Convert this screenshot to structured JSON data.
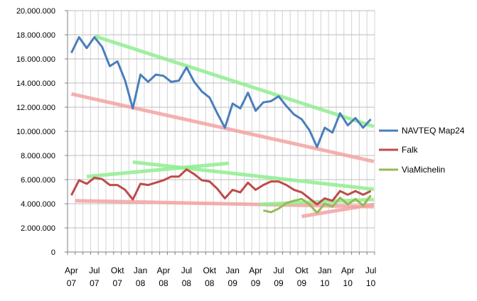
{
  "chart_data": {
    "type": "line",
    "title": "",
    "xlabel": "",
    "ylabel": "",
    "ylim": [
      0,
      20000000
    ],
    "y_ticks": [
      0,
      2000000,
      4000000,
      6000000,
      8000000,
      10000000,
      12000000,
      14000000,
      16000000,
      18000000,
      20000000
    ],
    "y_tick_labels": [
      "0",
      "2.000.000",
      "4.000.000",
      "6.000.000",
      "8.000.000",
      "10.000.000",
      "12.000.000",
      "14.000.000",
      "16.000.000",
      "18.000.000",
      "20.000.000"
    ],
    "x_tick_labels": [
      {
        "month": "Apr",
        "year": "07",
        "index": 0
      },
      {
        "month": "Jul",
        "year": "07",
        "index": 3
      },
      {
        "month": "Okt",
        "year": "07",
        "index": 6
      },
      {
        "month": "Jan",
        "year": "08",
        "index": 9
      },
      {
        "month": "Apr",
        "year": "08",
        "index": 12
      },
      {
        "month": "Jul",
        "year": "08",
        "index": 15
      },
      {
        "month": "Okt",
        "year": "08",
        "index": 18
      },
      {
        "month": "Jan",
        "year": "09",
        "index": 21
      },
      {
        "month": "Apr",
        "year": "09",
        "index": 24
      },
      {
        "month": "Jul",
        "year": "09",
        "index": 27
      },
      {
        "month": "Okt",
        "year": "09",
        "index": 30
      },
      {
        "month": "Jan",
        "year": "10",
        "index": 33
      },
      {
        "month": "Apr",
        "year": "10",
        "index": 36
      },
      {
        "month": "Jul",
        "year": "10",
        "index": 39
      }
    ],
    "x_range": [
      0,
      39
    ],
    "grid": true,
    "legend_position": "right",
    "series": [
      {
        "name": "NAVTEQ Map24",
        "color": "#4a7ebb",
        "start_index": 0,
        "values": [
          16500000,
          17800000,
          16900000,
          17800000,
          17000000,
          15400000,
          15800000,
          14200000,
          11900000,
          14700000,
          14100000,
          14700000,
          14600000,
          14100000,
          14200000,
          15300000,
          14100000,
          13300000,
          12800000,
          11500000,
          10300000,
          12300000,
          11900000,
          13200000,
          11700000,
          12400000,
          12500000,
          12900000,
          12100000,
          11400000,
          11000000,
          10100000,
          8700000,
          10300000,
          9900000,
          11500000,
          10500000,
          11100000,
          10300000,
          11000000
        ]
      },
      {
        "name": "Falk",
        "color": "#be4b48",
        "start_index": 0,
        "values": [
          4700000,
          5950000,
          5650000,
          6150000,
          6050000,
          5550000,
          5550000,
          5150000,
          4350000,
          5650000,
          5550000,
          5750000,
          5950000,
          6250000,
          6250000,
          6850000,
          6450000,
          5950000,
          5850000,
          5250000,
          4450000,
          5150000,
          4950000,
          5750000,
          5150000,
          5550000,
          5850000,
          5850000,
          5550000,
          5150000,
          4950000,
          4450000,
          3950000,
          4450000,
          4250000,
          5050000,
          4750000,
          5050000,
          4750000,
          5050000
        ]
      },
      {
        "name": "ViaMichelin",
        "color": "#98b954",
        "start_index": 25,
        "values": [
          3450000,
          3300000,
          3600000,
          4050000,
          4250000,
          4400000,
          3950000,
          3250000,
          4000000,
          3750000,
          4500000,
          3950000,
          4400000,
          3850000,
          4700000
        ]
      }
    ],
    "trend_lines": [
      {
        "color": "#90ee90",
        "from": [
          3,
          17900000
        ],
        "to": [
          39.4,
          10400000
        ]
      },
      {
        "color": "#f4a3a3",
        "from": [
          0,
          13100000
        ],
        "to": [
          39.4,
          7500000
        ]
      },
      {
        "color": "#90ee90",
        "from": [
          8,
          7450000
        ],
        "to": [
          39.4,
          5200000
        ]
      },
      {
        "color": "#90ee90",
        "from": [
          2,
          6250000
        ],
        "to": [
          20.5,
          7350000
        ]
      },
      {
        "color": "#f4a3a3",
        "from": [
          0.5,
          4250000
        ],
        "to": [
          39.4,
          3750000
        ]
      },
      {
        "color": "#f4a3a3",
        "from": [
          30,
          2950000
        ],
        "to": [
          39.4,
          3950000
        ]
      },
      {
        "color": "#90ee90",
        "from": [
          24.5,
          3950000
        ],
        "to": [
          39.4,
          4350000
        ]
      }
    ]
  }
}
